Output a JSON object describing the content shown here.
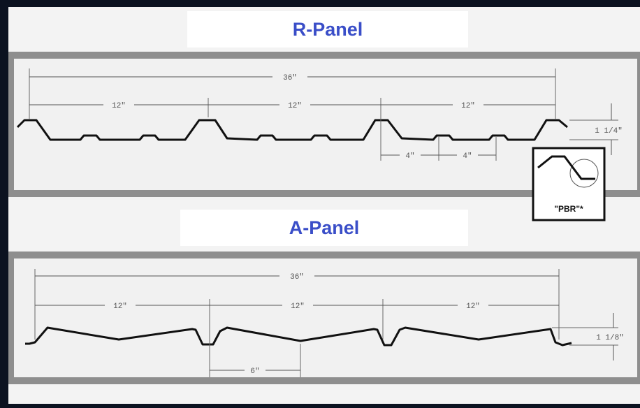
{
  "r_panel": {
    "title": "R-Panel",
    "overall_width": "36\"",
    "span_labels": [
      "12\"",
      "12\"",
      "12\""
    ],
    "minor_spacing": [
      "4\"",
      "4\""
    ],
    "height": "1 1/4\"",
    "detail_label": "\"PBR\"*"
  },
  "a_panel": {
    "title": "A-Panel",
    "overall_width": "36\"",
    "span_labels": [
      "12\"",
      "12\"",
      "12\""
    ],
    "minor_spacing": "6\"",
    "height": "1 1/8\""
  },
  "colors": {
    "background": "#0b1220",
    "title": "#3a4ec8",
    "band": "#8e8e8e",
    "line": "#111111"
  }
}
